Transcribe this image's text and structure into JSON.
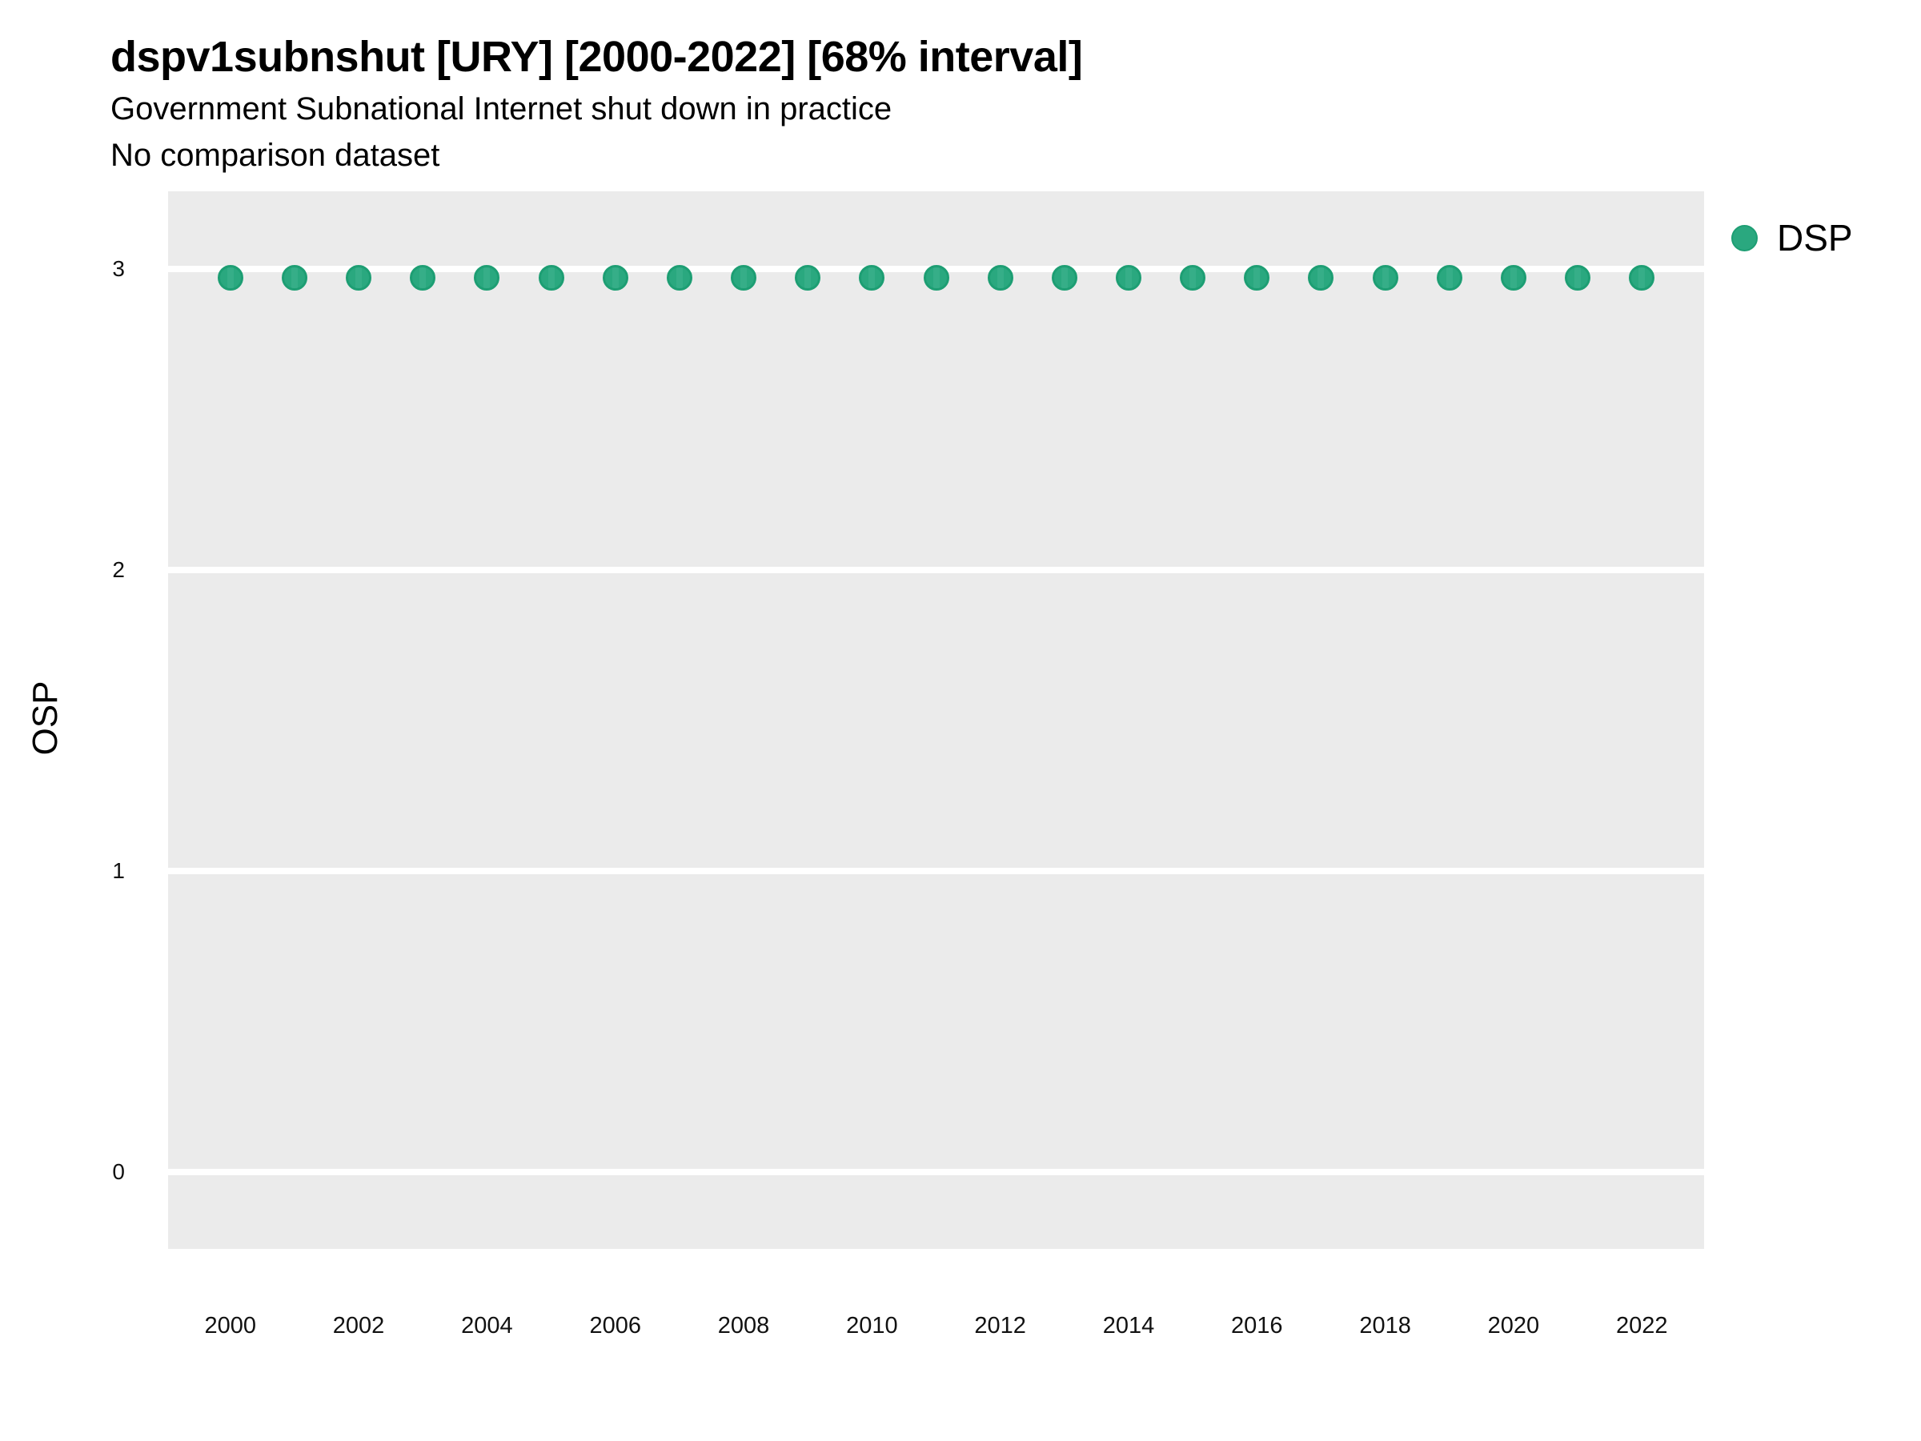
{
  "chart_data": {
    "type": "scatter",
    "title": "dspv1subnshut [URY] [2000-2022] [68% interval]",
    "subtitle": "Government Subnational Internet shut down in practice",
    "note": "No comparison dataset",
    "xlabel": "",
    "ylabel": "OSP",
    "legend": {
      "position": "right-top",
      "entries": [
        {
          "label": "DSP",
          "color": "#2AA87F",
          "stroke": "#1D9E73"
        }
      ]
    },
    "x_ticks": [
      2000,
      2002,
      2004,
      2006,
      2008,
      2010,
      2012,
      2014,
      2016,
      2018,
      2020,
      2022
    ],
    "y_ticks": [
      0,
      1,
      2,
      3
    ],
    "x_range": [
      1999.03,
      2022.97
    ],
    "y_range": [
      -0.255,
      3.258
    ],
    "grid": {
      "major_y": true,
      "minor": false,
      "color": "#FFFFFF"
    },
    "panel_bg": "#EBEBEB",
    "series": [
      {
        "name": "DSP",
        "marker": "circle",
        "fill": "#2AA87F",
        "fill_highlight": "#36AE88",
        "stroke": "#1D9E73",
        "x": [
          2000,
          2001,
          2002,
          2003,
          2004,
          2005,
          2006,
          2007,
          2008,
          2009,
          2010,
          2011,
          2012,
          2013,
          2014,
          2015,
          2016,
          2017,
          2018,
          2019,
          2020,
          2021,
          2022
        ],
        "y": [
          2.97,
          2.97,
          2.97,
          2.97,
          2.97,
          2.97,
          2.97,
          2.97,
          2.97,
          2.97,
          2.97,
          2.97,
          2.97,
          2.97,
          2.97,
          2.97,
          2.97,
          2.97,
          2.97,
          2.97,
          2.97,
          2.97,
          2.97
        ]
      }
    ]
  }
}
